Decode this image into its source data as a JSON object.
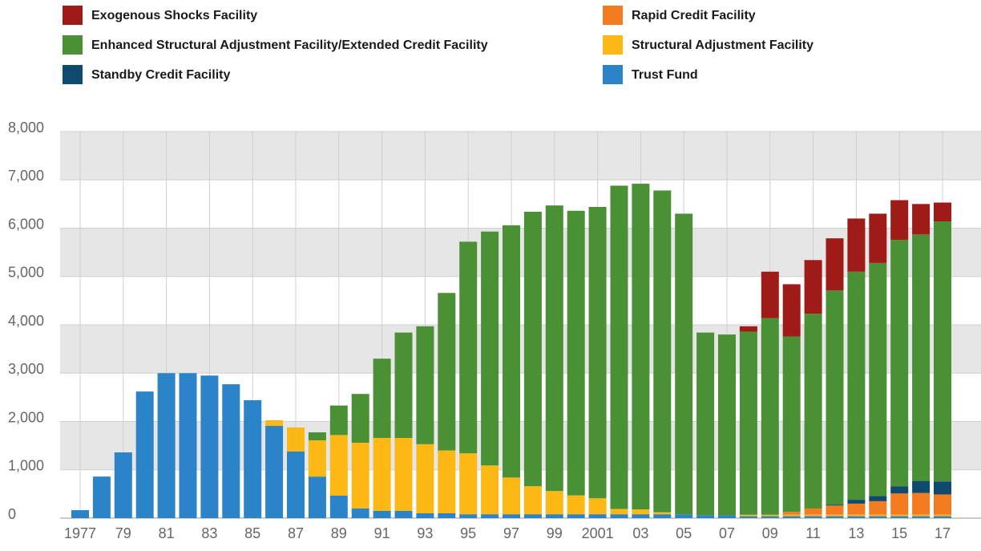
{
  "chart_data": {
    "type": "stacked_bar",
    "categories": [
      "1977",
      null,
      "79",
      null,
      "81",
      null,
      "83",
      null,
      "85",
      null,
      "87",
      null,
      "89",
      null,
      "91",
      null,
      "93",
      null,
      "95",
      null,
      "97",
      null,
      "99",
      null,
      "2001",
      null,
      "03",
      null,
      "05",
      null,
      "07",
      null,
      "09",
      null,
      "11",
      null,
      "13",
      null,
      "15",
      null,
      "17"
    ],
    "series": [
      {
        "name": "Exogenous Shocks Facility",
        "color": "#9e1b17",
        "values": [
          0,
          0,
          0,
          0,
          0,
          0,
          0,
          0,
          0,
          0,
          0,
          0,
          0,
          0,
          0,
          0,
          0,
          0,
          0,
          0,
          0,
          0,
          0,
          0,
          0,
          0,
          0,
          0,
          0,
          0,
          0,
          110,
          960,
          1080,
          1110,
          1080,
          1100,
          1020,
          820,
          630,
          390
        ]
      },
      {
        "name": "Rapid Credit Facility",
        "color": "#f47b20",
        "values": [
          0,
          0,
          0,
          0,
          0,
          0,
          0,
          0,
          0,
          0,
          0,
          0,
          0,
          0,
          0,
          0,
          0,
          0,
          0,
          0,
          0,
          0,
          0,
          0,
          0,
          0,
          0,
          0,
          0,
          0,
          0,
          0,
          0,
          60,
          130,
          190,
          230,
          280,
          440,
          450,
          420
        ]
      },
      {
        "name": "Enhanced Structural Adjustment Facility/Extended Credit Facility",
        "color": "#4a9035",
        "values": [
          0,
          0,
          0,
          0,
          0,
          0,
          0,
          0,
          0,
          0,
          0,
          165,
          610,
          1010,
          1640,
          2180,
          2440,
          3260,
          4380,
          4840,
          5220,
          5680,
          5910,
          5890,
          6030,
          6690,
          6740,
          6660,
          6220,
          3780,
          3740,
          3790,
          4070,
          3630,
          4030,
          4430,
          4720,
          4820,
          5100,
          5100,
          5380
        ]
      },
      {
        "name": "Structural Adjustment Facility",
        "color": "#fdb813",
        "values": [
          0,
          0,
          0,
          0,
          0,
          0,
          0,
          0,
          0,
          115,
          495,
          750,
          1255,
          1360,
          1510,
          1510,
          1430,
          1300,
          1260,
          1010,
          760,
          580,
          480,
          390,
          330,
          110,
          100,
          40,
          0,
          0,
          0,
          30,
          30,
          30,
          30,
          30,
          30,
          30,
          30,
          30,
          30
        ]
      },
      {
        "name": "Standby Credit Facility",
        "color": "#0d4a6e",
        "values": [
          0,
          0,
          0,
          0,
          0,
          0,
          0,
          0,
          0,
          0,
          0,
          0,
          0,
          0,
          0,
          0,
          0,
          0,
          0,
          0,
          0,
          0,
          0,
          0,
          0,
          0,
          0,
          0,
          0,
          0,
          0,
          0,
          0,
          0,
          0,
          20,
          80,
          110,
          150,
          250,
          270
        ]
      },
      {
        "name": "Trust Fund",
        "color": "#2b83c8",
        "values": [
          165,
          860,
          1360,
          2620,
          3000,
          3000,
          2950,
          2770,
          2440,
          1910,
          1380,
          860,
          465,
          200,
          150,
          150,
          100,
          100,
          80,
          80,
          80,
          80,
          80,
          80,
          80,
          80,
          80,
          80,
          80,
          60,
          60,
          40,
          40,
          40,
          40,
          40,
          40,
          40,
          40,
          40,
          40
        ]
      }
    ],
    "ylim": [
      0,
      8000
    ],
    "yticks": [
      0,
      {
        "value": 1000,
        "label": "1,000"
      },
      {
        "value": 2000,
        "label": "2,000"
      },
      {
        "value": 3000,
        "label": "3,000"
      },
      {
        "value": 4000,
        "label": "4,000"
      },
      {
        "value": 5000,
        "label": "5,000"
      },
      {
        "value": 6000,
        "label": "6,000"
      },
      {
        "value": 7000,
        "label": "7,000"
      },
      {
        "value": 8000,
        "label": "8,000"
      }
    ],
    "grid": true
  }
}
